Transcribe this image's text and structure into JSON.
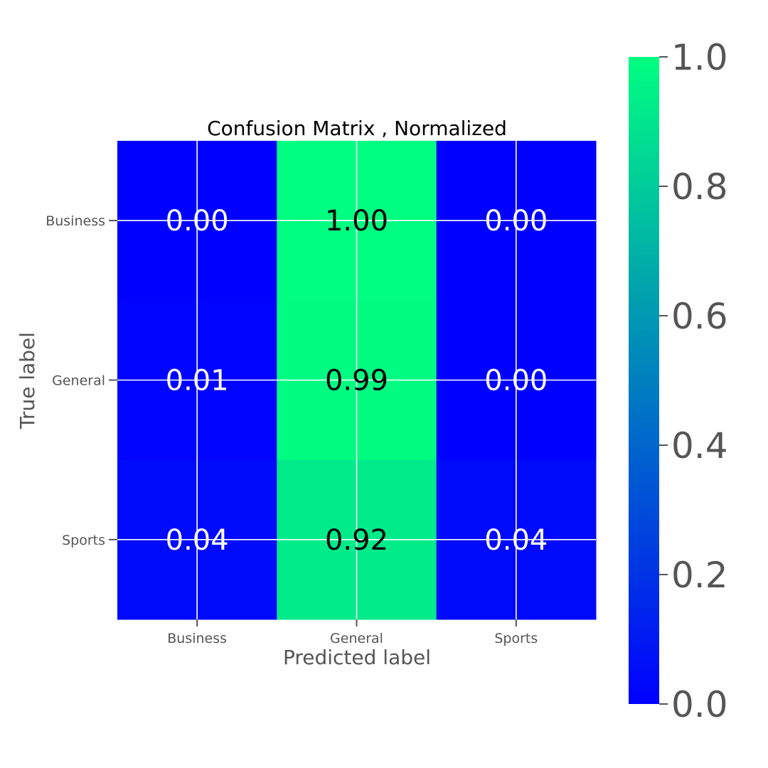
{
  "chart_data": {
    "type": "heatmap",
    "title": "Confusion Matrix , Normalized",
    "xlabel": "Predicted label",
    "ylabel": "True label",
    "x_categories": [
      "Business",
      "General",
      "Sports"
    ],
    "y_categories": [
      "Business",
      "General",
      "Sports"
    ],
    "values": [
      [
        0.0,
        1.0,
        0.0
      ],
      [
        0.01,
        0.99,
        0.0
      ],
      [
        0.04,
        0.92,
        0.04
      ]
    ],
    "cell_labels": [
      [
        "0.00",
        "1.00",
        "0.00"
      ],
      [
        "0.01",
        "0.99",
        "0.00"
      ],
      [
        "0.04",
        "0.92",
        "0.04"
      ]
    ],
    "colormap": "winter",
    "colormap_low": "#0000ff",
    "colormap_high": "#00ff80",
    "vmin": 0.0,
    "vmax": 1.0,
    "colorbar_ticks": [
      "0.0",
      "0.2",
      "0.4",
      "0.6",
      "0.8",
      "1.0"
    ],
    "grid": true,
    "grid_color": "#ffffff"
  }
}
